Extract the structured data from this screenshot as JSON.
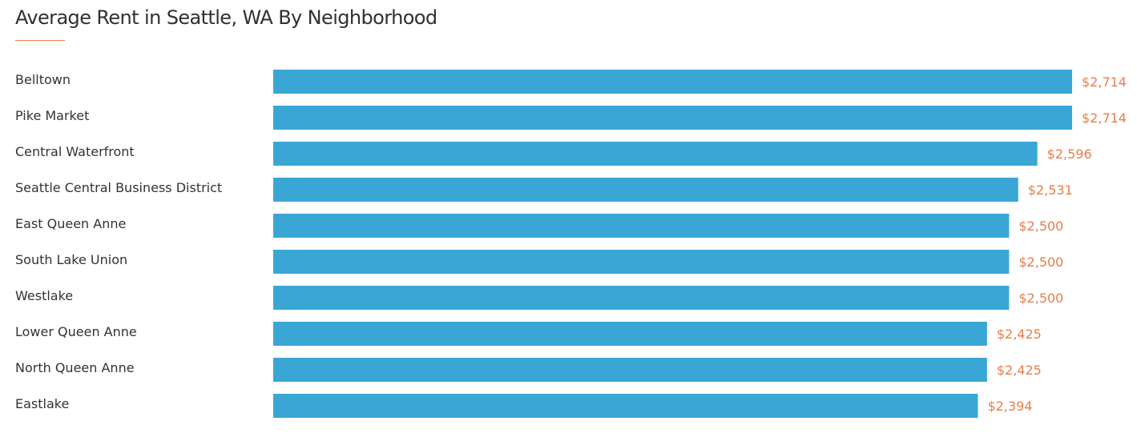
{
  "colors": {
    "bar": "#3aa6d6",
    "value_label": "#e87d4a",
    "accent_line": "#e87d4a",
    "text": "#333333"
  },
  "chart_data": {
    "type": "bar",
    "orientation": "horizontal",
    "title": "Average Rent in Seattle, WA By Neighborhood",
    "categories": [
      "Belltown",
      "Pike Market",
      "Central Waterfront",
      "Seattle Central Business District",
      "East Queen Anne",
      "South Lake Union",
      "Westlake",
      "Lower Queen Anne",
      "North Queen Anne",
      "Eastlake"
    ],
    "values": [
      2714,
      2714,
      2596,
      2531,
      2500,
      2500,
      2500,
      2425,
      2425,
      2394
    ],
    "value_labels": [
      "$2,714",
      "$2,714",
      "$2,596",
      "$2,531",
      "$2,500",
      "$2,500",
      "$2,500",
      "$2,425",
      "$2,425",
      "$2,394"
    ],
    "xlim": [
      0,
      2714
    ],
    "grid": false,
    "legend": "none"
  }
}
